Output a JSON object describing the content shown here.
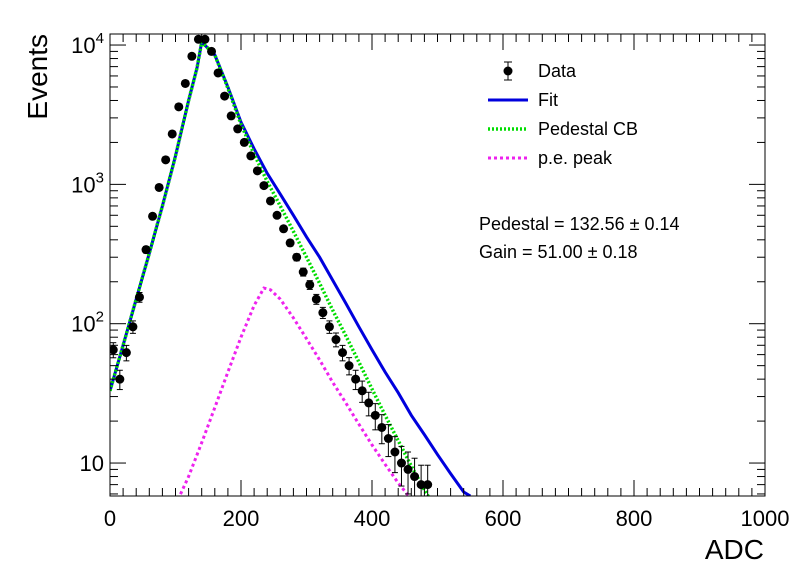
{
  "chart_data": {
    "type": "scatter",
    "xlabel": "ADC",
    "ylabel": "Events",
    "xlim": [
      0,
      1000
    ],
    "ylim": [
      5.8,
      12000
    ],
    "yscale": "log",
    "grid": false,
    "legend_position": "top-right",
    "x_ticks": [
      "0",
      "200",
      "400",
      "600",
      "800",
      "1000"
    ],
    "y_ticks": [
      {
        "value": 10,
        "label": "10",
        "exp": ""
      },
      {
        "value": 100,
        "label": "10",
        "exp": "2"
      },
      {
        "value": 1000,
        "label": "10",
        "exp": "3"
      },
      {
        "value": 10000,
        "label": "10",
        "exp": "4"
      }
    ],
    "legend": [
      {
        "label": "Data",
        "style": "marker"
      },
      {
        "label": "Fit",
        "style": "solid"
      },
      {
        "label": "Pedestal CB",
        "style": "dotted"
      },
      {
        "label": "p.e. peak",
        "style": "dashed"
      }
    ],
    "annotations": [
      "Pedestal = 132.56 ± 0.14",
      "Gain = 51.00 ± 0.18"
    ],
    "series": [
      {
        "name": "Data",
        "type": "scatter",
        "color": "#000000",
        "x": [
          5,
          15,
          25,
          35,
          45,
          55,
          65,
          75,
          85,
          95,
          105,
          115,
          125,
          135,
          145,
          155,
          165,
          175,
          185,
          195,
          205,
          215,
          225,
          235,
          245,
          255,
          265,
          275,
          285,
          295,
          305,
          315,
          325,
          335,
          345,
          355,
          365,
          375,
          385,
          395,
          405,
          415,
          425,
          435,
          445,
          455,
          465,
          475,
          485
        ],
        "y": [
          65,
          40,
          62,
          95,
          155,
          340,
          590,
          950,
          1500,
          2300,
          3600,
          5300,
          8300,
          11000,
          11000,
          9000,
          6300,
          4300,
          3100,
          2500,
          2000,
          1600,
          1250,
          980,
          760,
          600,
          480,
          380,
          300,
          235,
          190,
          150,
          120,
          95,
          77,
          62,
          50,
          40,
          33,
          27,
          22,
          18,
          15,
          12,
          10,
          9,
          8,
          7,
          7
        ]
      },
      {
        "name": "Fit",
        "type": "line",
        "color": "#0000dd",
        "style": "solid",
        "x": [
          0,
          20,
          40,
          60,
          80,
          100,
          120,
          133,
          140,
          160,
          180,
          200,
          220,
          240,
          260,
          280,
          300,
          320,
          340,
          360,
          380,
          400,
          420,
          440,
          460,
          480,
          500,
          520,
          540,
          550
        ],
        "y": [
          33,
          70,
          150,
          320,
          700,
          1600,
          4000,
          6900,
          10500,
          8500,
          5000,
          2800,
          1800,
          1200,
          850,
          600,
          420,
          300,
          205,
          140,
          95,
          65,
          45,
          32,
          22,
          16,
          11.5,
          8.4,
          6.2,
          5.8
        ]
      },
      {
        "name": "Pedestal CB",
        "type": "line",
        "color": "#00dd00",
        "style": "dotted",
        "x": [
          0,
          20,
          40,
          60,
          80,
          100,
          120,
          133,
          140,
          160,
          180,
          200,
          220,
          240,
          260,
          280,
          300,
          320,
          340,
          360,
          380,
          400,
          420,
          440,
          460,
          480,
          500
        ],
        "y": [
          33,
          70,
          150,
          320,
          700,
          1600,
          4000,
          6900,
          10500,
          8500,
          4900,
          2700,
          1650,
          1050,
          700,
          460,
          300,
          195,
          125,
          82,
          53,
          34,
          22,
          14.5,
          9.5,
          6.4,
          4.5
        ]
      },
      {
        "name": "p.e. peak",
        "type": "line",
        "color": "#ee22ee",
        "style": "dashed",
        "x": [
          100,
          120,
          140,
          160,
          180,
          200,
          220,
          235,
          245,
          260,
          280,
          300,
          320,
          340,
          360,
          380,
          400,
          420,
          440,
          460,
          475
        ],
        "y": [
          5.0,
          8.0,
          14,
          25,
          45,
          80,
          135,
          180,
          175,
          150,
          110,
          78,
          55,
          38,
          27,
          19,
          13.5,
          9.8,
          7.2,
          5.5,
          4.6
        ]
      }
    ]
  }
}
